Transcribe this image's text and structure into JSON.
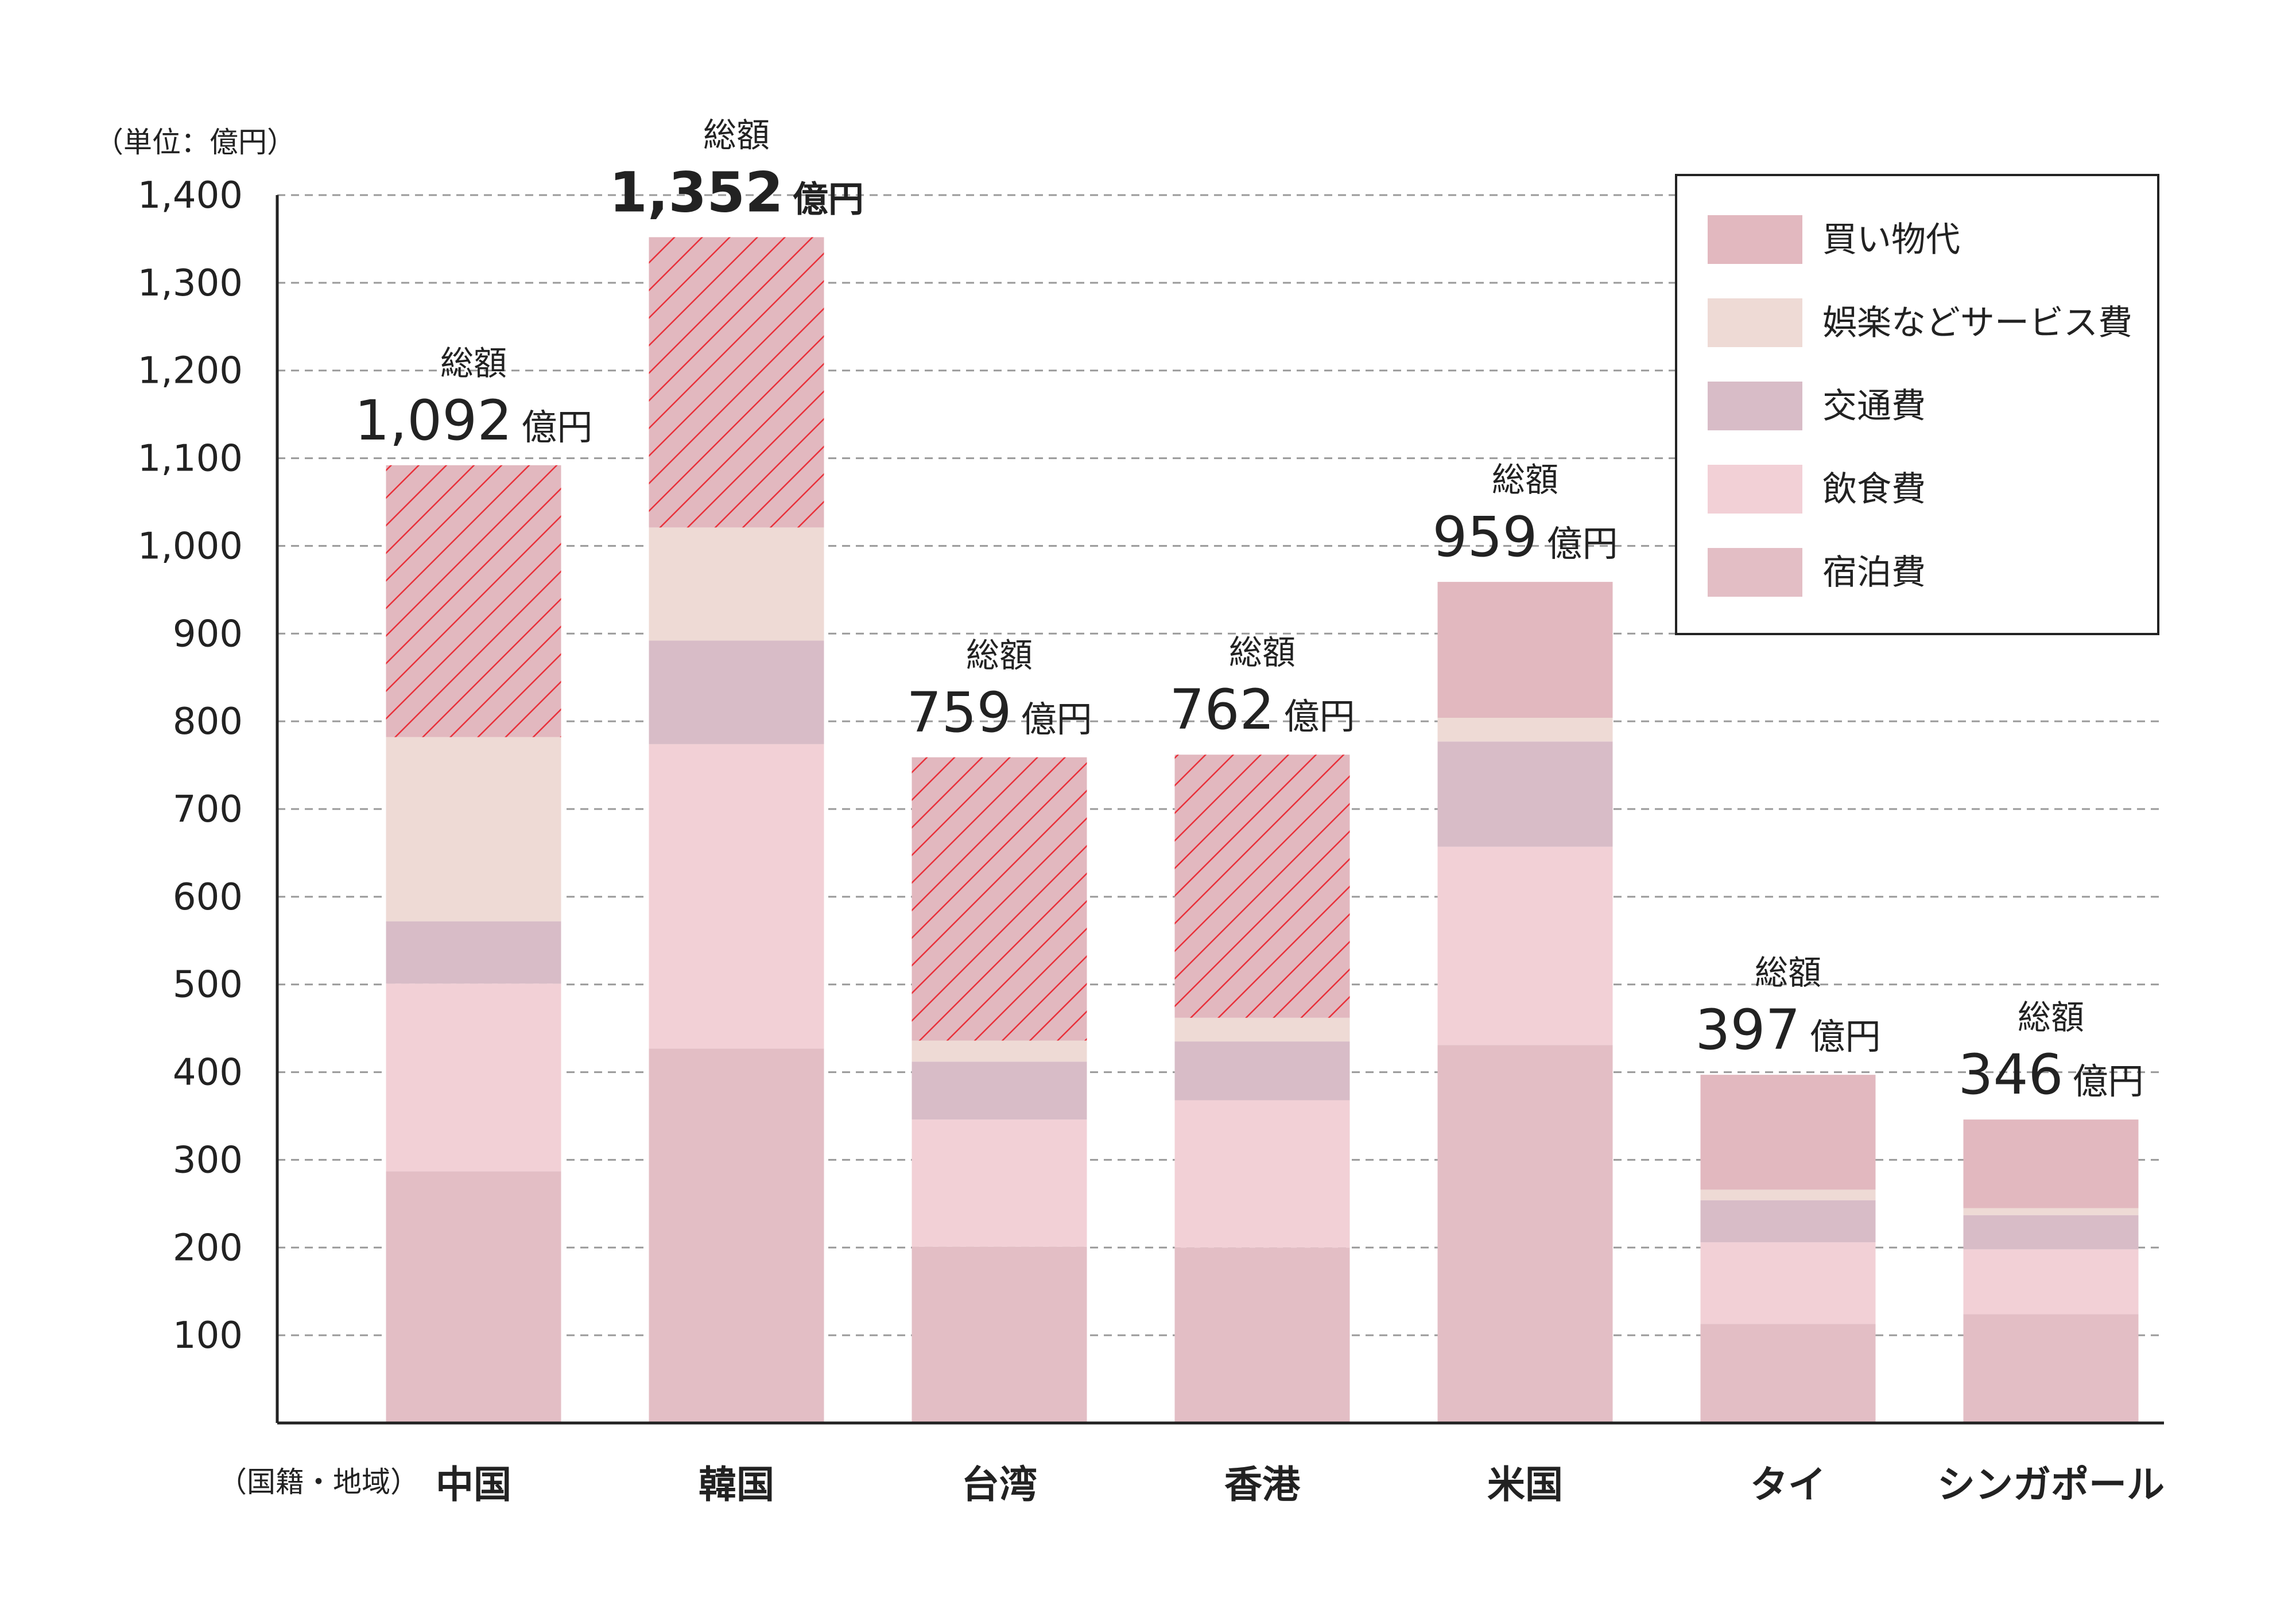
{
  "chart_data": {
    "type": "bar",
    "stacked": true,
    "y_unit_label": "（単位：億円）",
    "x_unit_label": "（国籍・地域）",
    "ylim": [
      0,
      1400
    ],
    "y_ticks": [
      100,
      200,
      300,
      400,
      500,
      600,
      700,
      800,
      900,
      1000,
      1100,
      1200,
      1300,
      1400
    ],
    "y_tick_labels": [
      "100",
      "200",
      "300",
      "400",
      "500",
      "600",
      "700",
      "800",
      "900",
      "1,000",
      "1,100",
      "1,200",
      "1,300",
      "1,400"
    ],
    "grid": true,
    "legend_position": "top-right",
    "categories": [
      "中国",
      "韓国",
      "台湾",
      "香港",
      "米国",
      "タイ",
      "シンガポール"
    ],
    "series": [
      {
        "name": "宿泊費",
        "color": "#e3bec5",
        "values": [
          287,
          427,
          201,
          200,
          431,
          113,
          124
        ]
      },
      {
        "name": "飲食費",
        "color": "#f2d0d6",
        "values": [
          214,
          347,
          145,
          168,
          226,
          93,
          74
        ]
      },
      {
        "name": "交通費",
        "color": "#d8bcc7",
        "values": [
          71,
          118,
          66,
          67,
          120,
          48,
          39
        ]
      },
      {
        "name": "娯楽などサービス費",
        "color": "#eedad5",
        "values": [
          210,
          129,
          24,
          27,
          27,
          12,
          8
        ]
      },
      {
        "name": "買い物代",
        "color": "#e2b8bf",
        "values": [
          310,
          331,
          323,
          300,
          155,
          131,
          101
        ]
      }
    ],
    "hatched_series": "買い物代",
    "hatched_categories": [
      "中国",
      "韓国",
      "台湾",
      "香港"
    ],
    "hatch_color": "#e8303a",
    "highlight_category": "韓国",
    "highlight_color": "#e02a30",
    "totals": {
      "word": "総額",
      "unit": "億円",
      "values": [
        1092,
        1352,
        759,
        762,
        959,
        397,
        346
      ],
      "labels": [
        "1,092",
        "1,352",
        "759",
        "762",
        "959",
        "397",
        "346"
      ]
    }
  }
}
